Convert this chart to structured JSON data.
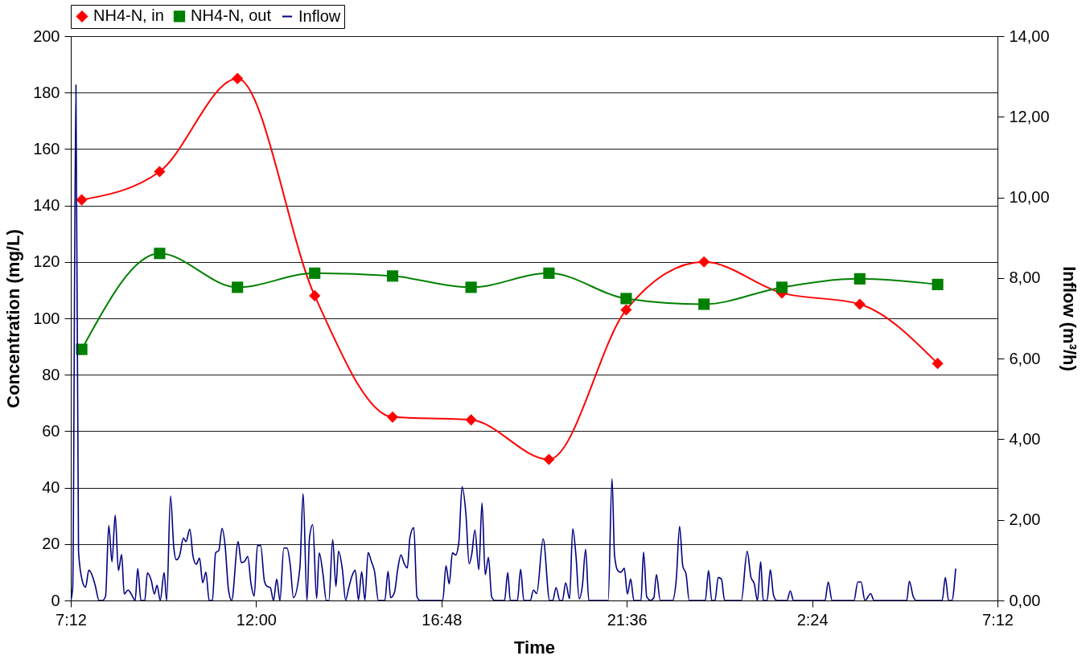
{
  "chart_data": {
    "type": "line",
    "xlabel": "Time",
    "ylabel": "Concentration (mg/L)",
    "y2label": "Inflow (m³/h)",
    "xlim": [
      "2000-01-01T07:12",
      "2000-01-02T07:12"
    ],
    "xticks": [
      {
        "value": "2000-01-01T07:12",
        "label": "7:12"
      },
      {
        "value": "2000-01-01T12:00",
        "label": "12:00"
      },
      {
        "value": "2000-01-01T16:48",
        "label": "16:48"
      },
      {
        "value": "2000-01-01T21:36",
        "label": "21:36"
      },
      {
        "value": "2000-01-02T02:24",
        "label": "2:24"
      },
      {
        "value": "2000-01-02T07:12",
        "label": "7:12"
      }
    ],
    "ylim": [
      0,
      200
    ],
    "yticks": [
      0,
      20,
      40,
      60,
      80,
      100,
      120,
      140,
      160,
      180,
      200
    ],
    "y2lim": [
      0,
      14
    ],
    "y2ticks": [
      {
        "value": 0,
        "label": "0,00"
      },
      {
        "value": 2,
        "label": "2,00"
      },
      {
        "value": 4,
        "label": "4,00"
      },
      {
        "value": 6,
        "label": "6,00"
      },
      {
        "value": 8,
        "label": "8,00"
      },
      {
        "value": 10,
        "label": "10,00"
      },
      {
        "value": 12,
        "label": "12,00"
      },
      {
        "value": 14,
        "label": "14,00"
      }
    ],
    "grid": "y",
    "legend": "top",
    "series": [
      {
        "name": "NH4-N, in",
        "color": "#ff0000",
        "marker": "diamond",
        "x": [
          "2000-01-01T07:29",
          "2000-01-01T09:30",
          "2000-01-01T11:31",
          "2000-01-01T13:31",
          "2000-01-01T15:32",
          "2000-01-01T17:34",
          "2000-01-01T19:35",
          "2000-01-01T21:35",
          "2000-01-01T23:36",
          "2000-01-02T01:37",
          "2000-01-02T03:38",
          "2000-01-02T05:39"
        ],
        "values": [
          142,
          152,
          185,
          108,
          65,
          64,
          50,
          103,
          120,
          109,
          105,
          84
        ]
      },
      {
        "name": "NH4-N, out",
        "color": "#008000",
        "marker": "square",
        "x": [
          "2000-01-01T07:29",
          "2000-01-01T09:30",
          "2000-01-01T11:31",
          "2000-01-01T13:31",
          "2000-01-01T15:32",
          "2000-01-01T17:34",
          "2000-01-01T19:35",
          "2000-01-01T21:35",
          "2000-01-01T23:36",
          "2000-01-02T01:37",
          "2000-01-02T03:38",
          "2000-01-02T05:39"
        ],
        "values": [
          89,
          123,
          111,
          116,
          115,
          111,
          116,
          107,
          105,
          111,
          114,
          112
        ]
      },
      {
        "name": "Inflow",
        "color": "#000080",
        "marker": "none",
        "axis": "y2",
        "x": [
          "2000-01-01T07:12",
          "2000-01-01T07:15",
          "2000-01-01T07:20",
          "2000-01-01T07:24",
          "2000-01-01T07:30",
          "2000-01-01T07:35",
          "2000-01-01T07:40",
          "2000-01-01T07:46",
          "2000-01-01T07:50",
          "2000-01-01T07:56",
          "2000-01-01T08:01",
          "2000-01-01T08:06",
          "2000-01-01T08:11",
          "2000-01-01T08:16",
          "2000-01-01T08:21",
          "2000-01-01T08:26",
          "2000-01-01T08:31",
          "2000-01-01T08:35",
          "2000-01-01T08:41",
          "2000-01-01T08:46",
          "2000-01-01T08:52",
          "2000-01-01T08:56",
          "2000-01-01T09:01",
          "2000-01-01T09:07",
          "2000-01-01T09:11",
          "2000-01-01T09:17",
          "2000-01-01T09:22",
          "2000-01-01T09:26",
          "2000-01-01T09:31",
          "2000-01-01T09:37",
          "2000-01-01T09:41",
          "2000-01-01T09:47",
          "2000-01-01T09:52",
          "2000-01-01T09:56",
          "2000-01-01T10:01",
          "2000-01-01T10:07",
          "2000-01-01T10:11",
          "2000-01-01T10:17",
          "2000-01-01T10:22",
          "2000-01-01T10:27",
          "2000-01-01T10:32",
          "2000-01-01T10:37",
          "2000-01-01T10:42",
          "2000-01-01T10:47",
          "2000-01-01T10:52",
          "2000-01-01T10:57",
          "2000-01-01T11:02",
          "2000-01-01T11:07",
          "2000-01-01T11:12",
          "2000-01-01T11:17",
          "2000-01-01T11:22",
          "2000-01-01T11:32",
          "2000-01-01T11:37",
          "2000-01-01T11:42",
          "2000-01-01T11:47",
          "2000-01-01T11:52",
          "2000-01-01T11:57",
          "2000-01-01T12:02",
          "2000-01-01T12:07",
          "2000-01-01T12:13",
          "2000-01-01T12:17",
          "2000-01-01T12:22",
          "2000-01-01T12:27",
          "2000-01-01T12:32",
          "2000-01-01T12:37",
          "2000-01-01T12:43",
          "2000-01-01T12:48",
          "2000-01-01T12:53",
          "2000-01-01T12:58",
          "2000-01-01T13:08",
          "2000-01-01T13:13",
          "2000-01-01T13:19",
          "2000-01-01T13:23",
          "2000-01-01T13:28",
          "2000-01-01T13:34",
          "2000-01-01T13:38",
          "2000-01-01T13:44",
          "2000-01-01T13:49",
          "2000-01-01T13:53",
          "2000-01-01T13:59",
          "2000-01-01T14:04",
          "2000-01-01T14:08",
          "2000-01-01T14:14",
          "2000-01-01T14:19",
          "2000-01-01T14:24",
          "2000-01-01T14:29",
          "2000-01-01T14:34",
          "2000-01-01T14:39",
          "2000-01-01T14:44",
          "2000-01-01T14:49",
          "2000-01-01T14:54",
          "2000-01-01T14:59",
          "2000-01-01T15:04",
          "2000-01-01T15:10",
          "2000-01-01T15:20",
          "2000-01-01T15:25",
          "2000-01-01T15:29",
          "2000-01-01T15:35",
          "2000-01-01T15:40",
          "2000-01-01T15:45",
          "2000-01-01T15:50",
          "2000-01-01T15:55",
          "2000-01-01T15:59",
          "2000-01-01T16:05",
          "2000-01-01T16:10",
          "2000-01-01T16:15",
          "2000-01-01T16:50",
          "2000-01-01T16:55",
          "2000-01-01T17:00",
          "2000-01-01T17:05",
          "2000-01-01T17:10",
          "2000-01-01T17:15",
          "2000-01-01T17:20",
          "2000-01-01T17:26",
          "2000-01-01T17:31",
          "2000-01-01T17:35",
          "2000-01-01T17:40",
          "2000-01-01T17:46",
          "2000-01-01T17:51",
          "2000-01-01T17:56",
          "2000-01-01T18:01",
          "2000-01-01T18:06",
          "2000-01-01T18:11",
          "2000-01-01T18:26",
          "2000-01-01T18:31",
          "2000-01-01T18:35",
          "2000-01-01T18:46",
          "2000-01-01T18:51",
          "2000-01-01T18:56",
          "2000-01-01T19:06",
          "2000-01-01T19:11",
          "2000-01-01T19:16",
          "2000-01-01T19:26",
          "2000-01-01T19:36",
          "2000-01-01T19:41",
          "2000-01-01T19:46",
          "2000-01-01T19:52",
          "2000-01-01T19:56",
          "2000-01-01T20:01",
          "2000-01-01T20:07",
          "2000-01-01T20:12",
          "2000-01-01T20:17",
          "2000-01-01T20:22",
          "2000-01-01T20:27",
          "2000-01-01T20:32",
          "2000-01-01T20:37",
          "2000-01-01T21:07",
          "2000-01-01T21:13",
          "2000-01-01T21:17",
          "2000-01-01T21:22",
          "2000-01-01T21:27",
          "2000-01-01T21:32",
          "2000-01-01T21:37",
          "2000-01-01T21:42",
          "2000-01-01T21:47",
          "2000-01-01T21:58",
          "2000-01-01T22:02",
          "2000-01-01T22:07",
          "2000-01-01T22:13",
          "2000-01-01T22:18",
          "2000-01-01T22:22",
          "2000-01-01T22:28",
          "2000-01-01T22:47",
          "2000-01-01T22:53",
          "2000-01-01T22:58",
          "2000-01-01T23:03",
          "2000-01-01T23:08",
          "2000-01-01T23:13",
          "2000-01-01T23:38",
          "2000-01-01T23:43",
          "2000-01-01T23:48",
          "2000-01-01T23:53",
          "2000-01-01T23:58",
          "2000-01-02T00:03",
          "2000-01-02T00:08",
          "2000-01-02T00:34",
          "2000-01-02T00:43",
          "2000-01-02T00:49",
          "2000-01-02T00:54",
          "2000-01-02T00:59",
          "2000-01-02T01:04",
          "2000-01-02T01:08",
          "2000-01-02T01:14",
          "2000-01-02T01:19",
          "2000-01-02T01:24",
          "2000-01-02T01:29",
          "2000-01-02T01:45",
          "2000-01-02T01:50",
          "2000-01-02T01:55",
          "2000-01-02T02:44",
          "2000-01-02T02:49",
          "2000-01-02T02:55",
          "2000-01-02T03:29",
          "2000-01-02T03:35",
          "2000-01-02T03:40",
          "2000-01-02T03:46",
          "2000-01-02T03:55",
          "2000-01-02T04:00",
          "2000-01-02T04:51",
          "2000-01-02T04:55",
          "2000-01-02T05:01",
          "2000-01-02T05:06",
          "2000-01-02T05:46",
          "2000-01-02T05:51",
          "2000-01-02T05:56",
          "2000-01-02T06:01",
          "2000-01-02T06:07"
        ],
        "values": [
          0,
          0.33,
          12.79,
          1.22,
          0.48,
          0.33,
          0.75,
          0.59,
          0.37,
          0,
          0,
          0.1,
          1.86,
          0.96,
          2.12,
          0.74,
          1.14,
          0.16,
          0.26,
          0.16,
          0,
          0.79,
          0,
          0,
          0.68,
          0.5,
          0.16,
          0.38,
          0,
          0.69,
          0,
          2.59,
          1.33,
          1.01,
          1.11,
          1.55,
          1.46,
          1.77,
          1.09,
          0.9,
          1.05,
          0.44,
          0.7,
          0,
          0,
          1.18,
          1.24,
          1.79,
          1.33,
          0.27,
          0,
          1.46,
          0.94,
          0.97,
          1.09,
          0.42,
          0.11,
          1.36,
          1.36,
          0.47,
          0.35,
          0.32,
          0,
          0.53,
          0,
          1.3,
          1.3,
          0.88,
          0.07,
          0.81,
          2.65,
          0,
          1.57,
          1.88,
          0.05,
          1.18,
          0.64,
          0,
          0,
          1.51,
          0.35,
          1.22,
          0.77,
          0.01,
          0.32,
          0.61,
          0.75,
          0.01,
          0.71,
          0.01,
          1.19,
          0.97,
          0.72,
          0,
          0,
          0.72,
          0.07,
          0.2,
          0.77,
          1.13,
          0.92,
          0.81,
          1.56,
          1.81,
          0.09,
          0,
          0,
          0.86,
          0.41,
          1.18,
          1.13,
          1.45,
          2.82,
          2.14,
          0.91,
          1.14,
          1.75,
          0.76,
          2.42,
          0.64,
          1.07,
          0.09,
          0,
          0,
          0.69,
          0,
          0,
          0.77,
          0,
          0,
          0.26,
          0.17,
          1.53,
          0,
          0,
          0.32,
          0,
          0,
          0.44,
          0.04,
          1.78,
          1.11,
          0.04,
          0.37,
          1.27,
          0,
          0,
          3.02,
          1.11,
          0.74,
          0.7,
          0.8,
          0.16,
          0.53,
          0,
          0,
          1.2,
          0.09,
          0,
          0.07,
          0.64,
          0,
          0,
          0.55,
          1.84,
          0.85,
          0.66,
          0,
          0,
          0.74,
          0,
          0,
          0.57,
          0.53,
          0,
          0,
          1.22,
          0.57,
          0.42,
          0,
          0.96,
          0,
          0,
          0.76,
          0.13,
          0,
          0,
          0.24,
          0,
          0,
          0.46,
          0,
          0,
          0.46,
          0.46,
          0,
          0.17,
          0,
          0,
          0.48,
          0.1,
          0,
          0,
          0.57,
          0,
          0,
          0.79
        ]
      }
    ]
  }
}
